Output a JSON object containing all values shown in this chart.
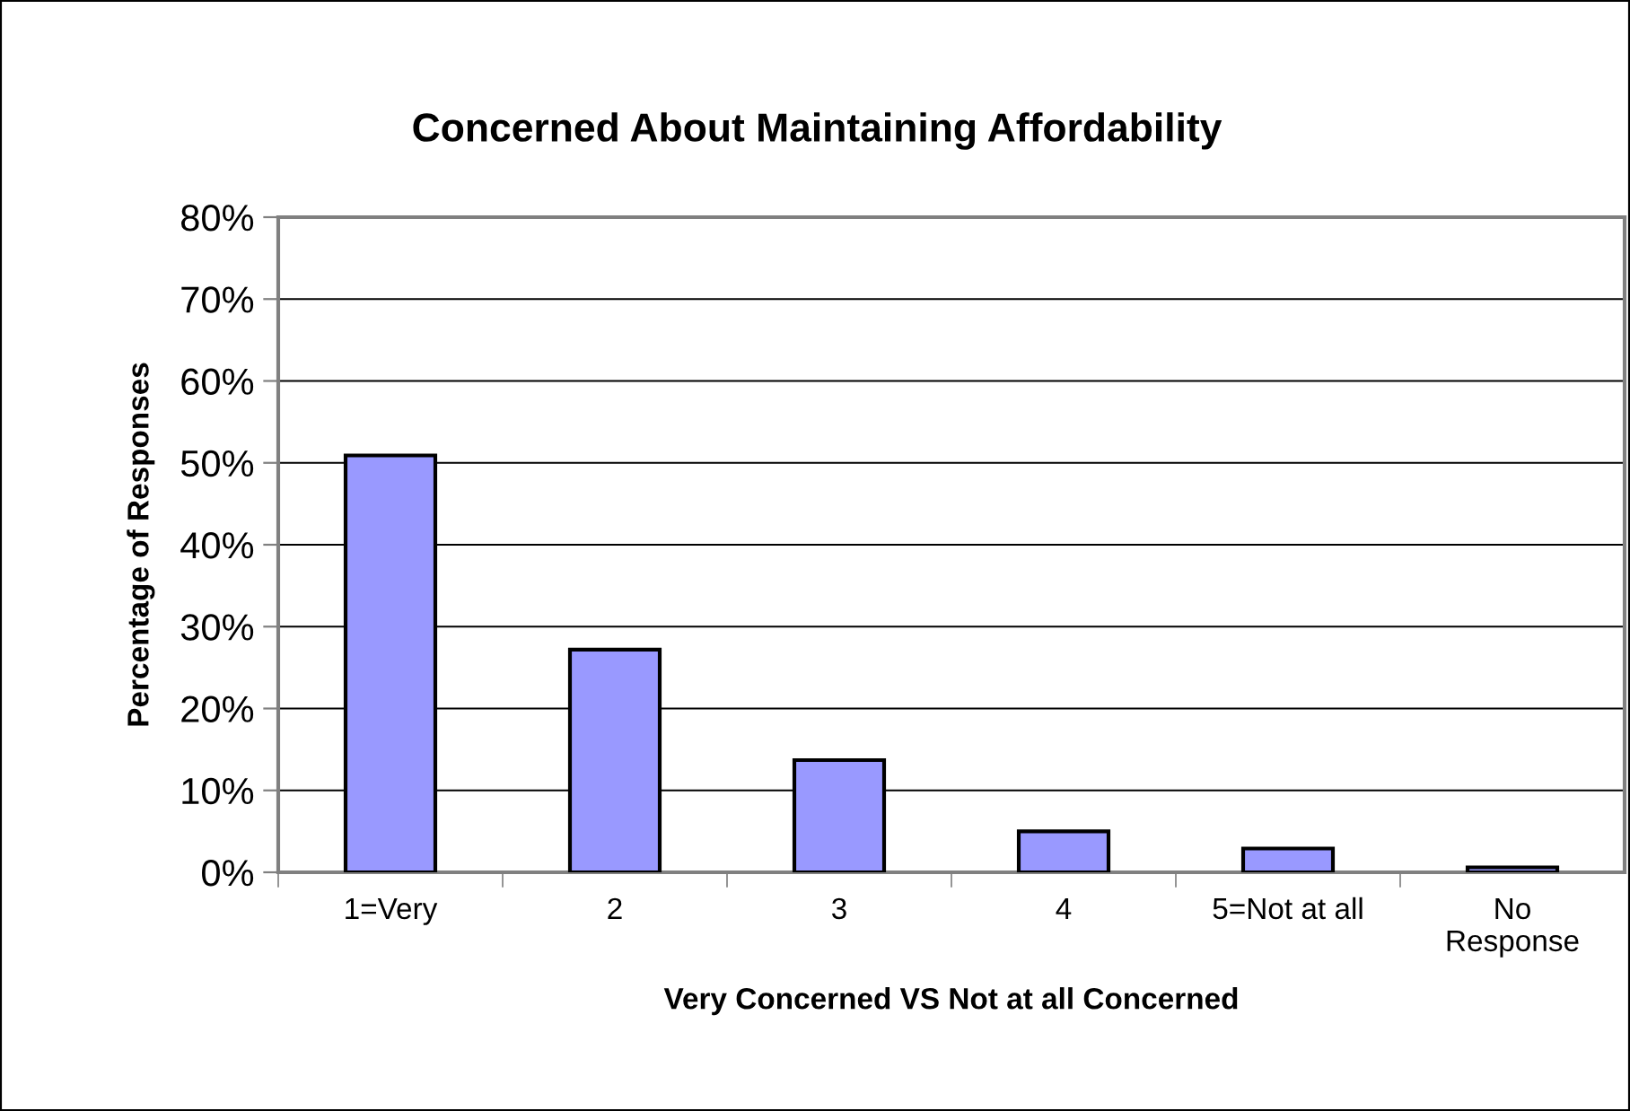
{
  "chart_data": {
    "type": "bar",
    "title": "Concerned About Maintaining Affordability",
    "xlabel": "Very Concerned VS Not at all Concerned",
    "ylabel": "Percentage of Responses",
    "categories": [
      "1=Very",
      "2",
      "3",
      "4",
      "5=Not at all",
      "No\nResponse"
    ],
    "values": [
      50.9,
      27.2,
      13.7,
      5.0,
      2.9,
      0.6
    ],
    "color": "#9999ff",
    "ylim": [
      0,
      80
    ],
    "yticks": [
      {
        "value": 0,
        "label": "0%"
      },
      {
        "value": 10,
        "label": "10%"
      },
      {
        "value": 20,
        "label": "20%"
      },
      {
        "value": 30,
        "label": "30%"
      },
      {
        "value": 40,
        "label": "40%"
      },
      {
        "value": 50,
        "label": "50%"
      },
      {
        "value": 60,
        "label": "60%"
      },
      {
        "value": 70,
        "label": "70%"
      },
      {
        "value": 80,
        "label": "80%"
      }
    ],
    "grid": "y",
    "legend": false
  }
}
